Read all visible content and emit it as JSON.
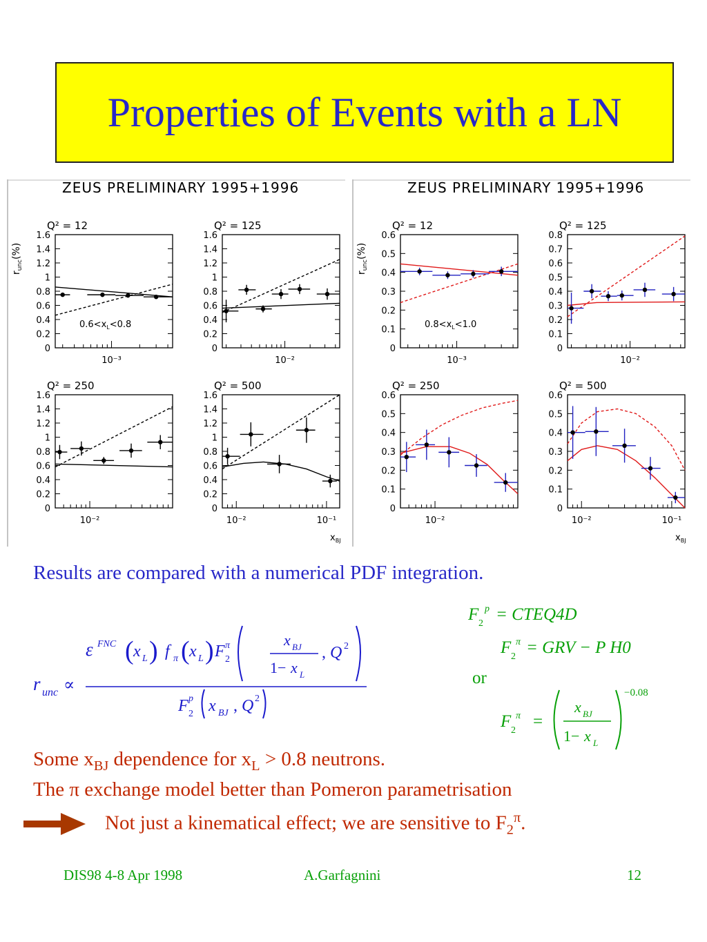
{
  "slide": {
    "title": "Properties of Events with a LN",
    "results_text": "Results are compared with a numerical PDF integration.",
    "conclusion_line1_prefix": "Some x",
    "conclusion_line1_sub1": "BJ",
    "conclusion_line1_mid": " dependence  for x",
    "conclusion_line1_sub2": "L",
    "conclusion_line1_suffix": " > 0.8 neutrons.",
    "conclusion_line2": "The π exchange model better than Pomeron parametrisation",
    "conclusion_line3_prefix": "Not just a kinematical effect; we are sensitive to F",
    "conclusion_line3_sub": "2",
    "conclusion_line3_sup": "π",
    "conclusion_line3_suffix": ".",
    "or_text": "or"
  },
  "formulas": {
    "main_lhs": "r",
    "main_lhs_sub": "unc",
    "propto": "∝",
    "numerator": "ε^FNC(x_L) f_π(x_L) F_2^π( x_BJ/(1−x_L), Q²)",
    "denominator": "F_2^p(x_BJ, Q²)",
    "f2p": "= CTEQ4D",
    "f2pi_grv": "= GRV − P  H0",
    "f2pi_power": "=(x_BJ/(1−x_L))^−0.08",
    "exponent": "−0.08"
  },
  "footer": {
    "left": "DIS98 4-8 Apr 1998",
    "center": "A.Garfagnini",
    "right": "12"
  },
  "colors": {
    "title_bg": "#ffff00",
    "title_text": "#2828c8",
    "data_blue": "#2020c0",
    "model_red": "#e01818",
    "text_red": "#c02800",
    "footer_green": "#08a008"
  },
  "chart_data": [
    {
      "type": "scatter",
      "panel_set_title": "ZEUS PRELIMINARY 1995+1996",
      "ylabel": "r_unc(%)",
      "xlabel": "x_BJ",
      "xscale": "log",
      "selection_label": "0.6<x_L<0.8",
      "subplots": [
        {
          "label": "Q² = 12",
          "xlim": [
            0.00025,
            0.0045
          ],
          "ylim": [
            0,
            1.6
          ],
          "yticks": [
            "0",
            "0.2",
            "0.4",
            "0.6",
            "0.8",
            "1",
            "1.2",
            "1.4",
            "1.6"
          ],
          "xticks": [
            {
              "value": 0.001,
              "label": "10⁻³"
            }
          ],
          "points": [
            {
              "x": 0.0003,
              "y": 0.75,
              "yerr": 0.02,
              "xlo": 0.00025,
              "xhi": 0.00036
            },
            {
              "x": 0.0008,
              "y": 0.75,
              "yerr": 0.03,
              "xlo": 0.00055,
              "xhi": 0.0011
            },
            {
              "x": 0.0015,
              "y": 0.74,
              "yerr": 0.03,
              "xlo": 0.0011,
              "xhi": 0.0022
            },
            {
              "x": 0.003,
              "y": 0.72,
              "yerr": 0.03,
              "xlo": 0.0022,
              "xhi": 0.0045
            }
          ],
          "models": [
            {
              "style": "solid",
              "x": [
                0.00025,
                0.0045
              ],
              "y": [
                0.86,
                0.72
              ]
            },
            {
              "style": "dashed",
              "x": [
                0.00025,
                0.0045
              ],
              "y": [
                0.46,
                0.9
              ]
            }
          ]
        },
        {
          "label": "Q² = 125",
          "xlim": [
            0.0018,
            0.045
          ],
          "ylim": [
            0,
            1.6
          ],
          "yticks": [
            "0",
            "0.2",
            "0.4",
            "0.6",
            "0.8",
            "1",
            "1.2",
            "1.4",
            "1.6"
          ],
          "xticks": [
            {
              "value": 0.01,
              "label": "10⁻²"
            }
          ],
          "points": [
            {
              "x": 0.002,
              "y": 0.52,
              "yerr": 0.16,
              "xlo": 0.0018,
              "xhi": 0.0028
            },
            {
              "x": 0.0035,
              "y": 0.82,
              "yerr": 0.07,
              "xlo": 0.0028,
              "xhi": 0.0045
            },
            {
              "x": 0.0055,
              "y": 0.55,
              "yerr": 0.05,
              "xlo": 0.0045,
              "xhi": 0.007
            },
            {
              "x": 0.009,
              "y": 0.76,
              "yerr": 0.07,
              "xlo": 0.007,
              "xhi": 0.011
            },
            {
              "x": 0.015,
              "y": 0.83,
              "yerr": 0.07,
              "xlo": 0.011,
              "xhi": 0.02
            },
            {
              "x": 0.032,
              "y": 0.76,
              "yerr": 0.08,
              "xlo": 0.024,
              "xhi": 0.045
            }
          ],
          "models": [
            {
              "style": "solid",
              "x": [
                0.0018,
                0.045
              ],
              "y": [
                0.56,
                0.63
              ]
            },
            {
              "style": "dashed",
              "x": [
                0.0018,
                0.045
              ],
              "y": [
                0.5,
                1.25
              ]
            }
          ]
        },
        {
          "label": "Q² = 250",
          "xlim": [
            0.004,
            0.09
          ],
          "ylim": [
            0,
            1.6
          ],
          "yticks": [
            "0",
            "0.2",
            "0.4",
            "0.6",
            "0.8",
            "1",
            "1.2",
            "1.4",
            "1.6"
          ],
          "xticks": [
            {
              "value": 0.01,
              "label": "10⁻²"
            }
          ],
          "points": [
            {
              "x": 0.0045,
              "y": 0.79,
              "yerr": 0.1,
              "xlo": 0.004,
              "xhi": 0.0055
            },
            {
              "x": 0.008,
              "y": 0.84,
              "yerr": 0.1,
              "xlo": 0.006,
              "xhi": 0.01
            },
            {
              "x": 0.0145,
              "y": 0.67,
              "yerr": 0.05,
              "xlo": 0.011,
              "xhi": 0.019
            },
            {
              "x": 0.03,
              "y": 0.81,
              "yerr": 0.1,
              "xlo": 0.022,
              "xhi": 0.04
            },
            {
              "x": 0.065,
              "y": 0.93,
              "yerr": 0.1,
              "xlo": 0.046,
              "xhi": 0.09
            }
          ],
          "models": [
            {
              "style": "solid",
              "x": [
                0.004,
                0.09
              ],
              "y": [
                0.62,
                0.58
              ]
            },
            {
              "style": "dashed",
              "x": [
                0.004,
                0.09
              ],
              "y": [
                0.58,
                1.43
              ]
            }
          ]
        },
        {
          "label": "Q² = 500",
          "xlim": [
            0.007,
            0.14
          ],
          "ylim": [
            0,
            1.6
          ],
          "yticks": [
            "0",
            "0.2",
            "0.4",
            "0.6",
            "0.8",
            "1",
            "1.2",
            "1.4",
            "1.6"
          ],
          "xticks": [
            {
              "value": 0.01,
              "label": "10⁻²"
            },
            {
              "value": 0.1,
              "label": "10⁻¹"
            }
          ],
          "points": [
            {
              "x": 0.008,
              "y": 0.73,
              "yerr": 0.12,
              "xlo": 0.007,
              "xhi": 0.011
            },
            {
              "x": 0.0145,
              "y": 1.04,
              "yerr": 0.17,
              "xlo": 0.011,
              "xhi": 0.02
            },
            {
              "x": 0.03,
              "y": 0.62,
              "yerr": 0.13,
              "xlo": 0.022,
              "xhi": 0.04
            },
            {
              "x": 0.06,
              "y": 1.1,
              "yerr": 0.18,
              "xlo": 0.046,
              "xhi": 0.075
            },
            {
              "x": 0.11,
              "y": 0.38,
              "yerr": 0.09,
              "xlo": 0.09,
              "xhi": 0.13
            }
          ],
          "models": [
            {
              "style": "solid",
              "x": [
                0.007,
                0.012,
                0.02,
                0.035,
                0.06,
                0.1,
                0.14
              ],
              "y": [
                0.58,
                0.63,
                0.65,
                0.62,
                0.55,
                0.44,
                0.38
              ]
            },
            {
              "style": "dashed",
              "x": [
                0.007,
                0.14
              ],
              "y": [
                0.55,
                1.6
              ]
            }
          ]
        }
      ]
    },
    {
      "type": "scatter",
      "panel_set_title": "ZEUS PRELIMINARY 1995+1996",
      "ylabel": "r_unc(%)",
      "xlabel": "x_BJ",
      "xscale": "log",
      "selection_label": "0.8<x_L<1.0",
      "subplots": [
        {
          "label": "Q² = 12",
          "xlim": [
            0.00025,
            0.0045
          ],
          "ylim": [
            0,
            0.6
          ],
          "yticks": [
            "0",
            "0.1",
            "0.2",
            "0.3",
            "0.4",
            "0.5",
            "0.6"
          ],
          "xticks": [
            {
              "value": 0.001,
              "label": "10⁻³"
            }
          ],
          "points": [
            {
              "x": 0.0004,
              "y": 0.405,
              "yerr": 0.02,
              "xlo": 0.00025,
              "xhi": 0.00055
            },
            {
              "x": 0.0008,
              "y": 0.385,
              "yerr": 0.02,
              "xlo": 0.00055,
              "xhi": 0.0011
            },
            {
              "x": 0.0015,
              "y": 0.392,
              "yerr": 0.02,
              "xlo": 0.0011,
              "xhi": 0.0022
            },
            {
              "x": 0.003,
              "y": 0.405,
              "yerr": 0.025,
              "xlo": 0.0022,
              "xhi": 0.0045
            }
          ],
          "models": [
            {
              "style": "solid",
              "x": [
                0.00025,
                0.0045
              ],
              "y": [
                0.445,
                0.385
              ]
            },
            {
              "style": "dashed",
              "x": [
                0.00025,
                0.0045
              ],
              "y": [
                0.24,
                0.445
              ]
            }
          ]
        },
        {
          "label": "Q² = 125",
          "xlim": [
            0.0018,
            0.045
          ],
          "ylim": [
            0,
            0.8
          ],
          "yticks": [
            "0",
            "0.1",
            "0.2",
            "0.3",
            "0.4",
            "0.5",
            "0.6",
            "0.7",
            "0.8"
          ],
          "xticks": [
            {
              "value": 0.01,
              "label": "10⁻²"
            }
          ],
          "points": [
            {
              "x": 0.002,
              "y": 0.28,
              "yerr": 0.11,
              "xlo": 0.0018,
              "xhi": 0.0028
            },
            {
              "x": 0.0035,
              "y": 0.4,
              "yerr": 0.05,
              "xlo": 0.0028,
              "xhi": 0.0045
            },
            {
              "x": 0.0055,
              "y": 0.365,
              "yerr": 0.035,
              "xlo": 0.0045,
              "xhi": 0.007
            },
            {
              "x": 0.008,
              "y": 0.37,
              "yerr": 0.035,
              "xlo": 0.007,
              "xhi": 0.011
            },
            {
              "x": 0.015,
              "y": 0.41,
              "yerr": 0.05,
              "xlo": 0.011,
              "xhi": 0.02
            },
            {
              "x": 0.033,
              "y": 0.38,
              "yerr": 0.05,
              "xlo": 0.024,
              "xhi": 0.045
            }
          ],
          "models": [
            {
              "style": "solid",
              "x": [
                0.0018,
                0.004,
                0.045
              ],
              "y": [
                0.3,
                0.32,
                0.325
              ]
            },
            {
              "style": "dashed",
              "x": [
                0.0018,
                0.045
              ],
              "y": [
                0.22,
                0.79
              ]
            }
          ]
        },
        {
          "label": "Q² = 250",
          "xlim": [
            0.004,
            0.09
          ],
          "ylim": [
            0,
            0.6
          ],
          "yticks": [
            "0",
            "0.1",
            "0.2",
            "0.3",
            "0.4",
            "0.5",
            "0.6"
          ],
          "xticks": [
            {
              "value": 0.01,
              "label": "10⁻²"
            }
          ],
          "points": [
            {
              "x": 0.0047,
              "y": 0.27,
              "yerr": 0.08,
              "xlo": 0.004,
              "xhi": 0.006
            },
            {
              "x": 0.008,
              "y": 0.335,
              "yerr": 0.08,
              "xlo": 0.006,
              "xhi": 0.01
            },
            {
              "x": 0.0145,
              "y": 0.295,
              "yerr": 0.08,
              "xlo": 0.011,
              "xhi": 0.019
            },
            {
              "x": 0.03,
              "y": 0.225,
              "yerr": 0.06,
              "xlo": 0.022,
              "xhi": 0.04
            },
            {
              "x": 0.065,
              "y": 0.135,
              "yerr": 0.05,
              "xlo": 0.048,
              "xhi": 0.09
            }
          ],
          "models": [
            {
              "style": "solid",
              "x": [
                0.004,
                0.008,
                0.015,
                0.025,
                0.04,
                0.06,
                0.09
              ],
              "y": [
                0.29,
                0.325,
                0.325,
                0.29,
                0.23,
                0.15,
                0.075
              ]
            },
            {
              "style": "dashed",
              "x": [
                0.004,
                0.007,
                0.012,
                0.02,
                0.035,
                0.06,
                0.09
              ],
              "y": [
                0.28,
                0.37,
                0.44,
                0.49,
                0.53,
                0.555,
                0.57
              ]
            }
          ]
        },
        {
          "label": "Q² = 500",
          "xlim": [
            0.007,
            0.14
          ],
          "ylim": [
            0,
            0.6
          ],
          "yticks": [
            "0",
            "0.1",
            "0.2",
            "0.3",
            "0.4",
            "0.5",
            "0.6"
          ],
          "xticks": [
            {
              "value": 0.01,
              "label": "10⁻²"
            },
            {
              "value": 0.1,
              "label": "10⁻¹"
            }
          ],
          "points": [
            {
              "x": 0.008,
              "y": 0.4,
              "yerr": 0.14,
              "xlo": 0.007,
              "xhi": 0.011
            },
            {
              "x": 0.0145,
              "y": 0.405,
              "yerr": 0.13,
              "xlo": 0.011,
              "xhi": 0.02
            },
            {
              "x": 0.03,
              "y": 0.33,
              "yerr": 0.09,
              "xlo": 0.022,
              "xhi": 0.04
            },
            {
              "x": 0.058,
              "y": 0.21,
              "yerr": 0.06,
              "xlo": 0.046,
              "xhi": 0.075
            },
            {
              "x": 0.11,
              "y": 0.055,
              "yerr": 0.03,
              "xlo": 0.09,
              "xhi": 0.14
            }
          ],
          "models": [
            {
              "style": "solid",
              "x": [
                0.007,
                0.01,
                0.015,
                0.025,
                0.04,
                0.065,
                0.1,
                0.14
              ],
              "y": [
                0.25,
                0.31,
                0.33,
                0.31,
                0.25,
                0.16,
                0.07,
                0.0
              ]
            },
            {
              "style": "dashed",
              "x": [
                0.007,
                0.01,
                0.015,
                0.025,
                0.04,
                0.065,
                0.1,
                0.14
              ],
              "y": [
                0.34,
                0.45,
                0.51,
                0.525,
                0.5,
                0.43,
                0.33,
                0.2
              ]
            }
          ]
        }
      ]
    }
  ]
}
